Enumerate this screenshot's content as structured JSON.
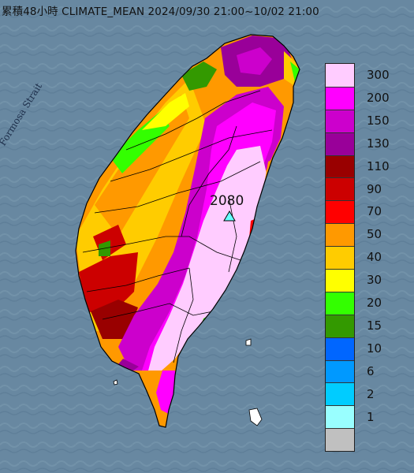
{
  "title": "累積48小時 CLIMATE_MEAN 2024/09/30 21:00~10/02 21:00",
  "sea_label": "Formosa Strait",
  "peak_value": "2080",
  "peak_marker": "triangle-marker",
  "legend": {
    "bins": [
      {
        "label": "300",
        "color": "#ffccff"
      },
      {
        "label": "200",
        "color": "#ff00ff"
      },
      {
        "label": "150",
        "color": "#cc00cc"
      },
      {
        "label": "130",
        "color": "#990099"
      },
      {
        "label": "110",
        "color": "#990000"
      },
      {
        "label": "90",
        "color": "#cc0000"
      },
      {
        "label": "70",
        "color": "#ff0000"
      },
      {
        "label": "50",
        "color": "#ff9900"
      },
      {
        "label": "40",
        "color": "#ffcc00"
      },
      {
        "label": "30",
        "color": "#ffff00"
      },
      {
        "label": "20",
        "color": "#33ff00"
      },
      {
        "label": "15",
        "color": "#339900"
      },
      {
        "label": "10",
        "color": "#0066ff"
      },
      {
        "label": "6",
        "color": "#0099ff"
      },
      {
        "label": "2",
        "color": "#00ccff"
      },
      {
        "label": "1",
        "color": "#99ffff"
      },
      {
        "label": "",
        "color": "#c0c0c0"
      }
    ]
  },
  "colors": {
    "sea": "#6f8ea6",
    "land_outline": "#000000"
  }
}
